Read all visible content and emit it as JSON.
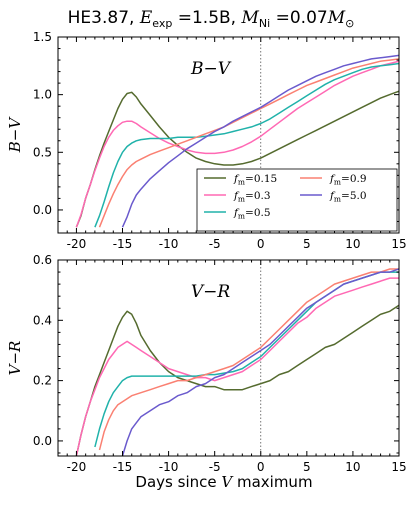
{
  "suptitle": {
    "prefix": "HE3.87, ",
    "e_sym": "E",
    "e_sub": "exp",
    "e_val": " =1.5B, ",
    "m_sym": "M",
    "m_sub": "Ni",
    "m_eq": " =0.07",
    "m_sym2": "M",
    "m_sub2": "⊙"
  },
  "xlabel": {
    "pre": "Days since ",
    "var": "V",
    "post": " maximum"
  },
  "series_style": {
    "f_m=0.15": "#556b2f",
    "f_m=0.3": "#ff69b4",
    "f_m=0.5": "#20b2aa",
    "f_m=0.9": "#fa8072",
    "f_m=5.0": "#6a5acd"
  },
  "legend": {
    "placement": "lower-right of top panel",
    "entries": [
      {
        "sym": "f",
        "sub": "m",
        "val": "=0.15"
      },
      {
        "sym": "f",
        "sub": "m",
        "val": "=0.9"
      },
      {
        "sym": "f",
        "sub": "m",
        "val": "=0.3"
      },
      {
        "sym": "f",
        "sub": "m",
        "val": "=5.0"
      },
      {
        "sym": "f",
        "sub": "m",
        "val": "=0.5"
      }
    ]
  },
  "chart_data": [
    {
      "type": "line",
      "title": "B−V",
      "ylabel": "B−V",
      "xlim": [
        -22,
        15
      ],
      "ylim": [
        -0.2,
        1.5
      ],
      "xticks": [
        -20,
        -15,
        -10,
        -5,
        0,
        5,
        10,
        15
      ],
      "yticks": [
        0.0,
        0.5,
        1.0,
        1.5
      ],
      "ytick_labels": [
        "0.0",
        "0.5",
        "1.0",
        "1.5"
      ],
      "vline_x": 0,
      "series": [
        {
          "name": "f_m=0.15",
          "x": [
            -20.0,
            -19.5,
            -19.0,
            -18.5,
            -18.0,
            -17.5,
            -17.0,
            -16.5,
            -16.0,
            -15.5,
            -15.0,
            -14.5,
            -14.0,
            -13.5,
            -13.0,
            -12.0,
            -11.0,
            -10.0,
            -9.0,
            -8.0,
            -7.0,
            -6.0,
            -5.0,
            -4.0,
            -3.0,
            -2.0,
            -1.0,
            0.0,
            1.0,
            2.0,
            3.0,
            4.0,
            5.0,
            6.0,
            7.0,
            8.0,
            9.0,
            10.0,
            11.0,
            12.0,
            13.0,
            14.0,
            15.0
          ],
          "y": [
            -0.15,
            -0.05,
            0.1,
            0.22,
            0.35,
            0.47,
            0.58,
            0.68,
            0.78,
            0.88,
            0.96,
            1.01,
            1.02,
            0.98,
            0.92,
            0.82,
            0.72,
            0.63,
            0.56,
            0.5,
            0.45,
            0.42,
            0.4,
            0.39,
            0.39,
            0.4,
            0.42,
            0.45,
            0.49,
            0.53,
            0.57,
            0.61,
            0.65,
            0.69,
            0.73,
            0.77,
            0.81,
            0.85,
            0.89,
            0.93,
            0.97,
            1.0,
            1.03
          ]
        },
        {
          "name": "f_m=0.3",
          "x": [
            -20.0,
            -19.5,
            -19.0,
            -18.5,
            -18.0,
            -17.5,
            -17.0,
            -16.5,
            -16.0,
            -15.5,
            -15.0,
            -14.5,
            -14.0,
            -13.5,
            -13.0,
            -12.0,
            -11.0,
            -10.0,
            -9.0,
            -8.0,
            -7.0,
            -6.0,
            -5.0,
            -4.0,
            -3.0,
            -2.0,
            -1.0,
            0.0,
            1.0,
            2.0,
            3.0,
            4.0,
            5.0,
            6.0,
            7.0,
            8.0,
            9.0,
            10.0,
            11.0,
            12.0,
            13.0,
            14.0,
            15.0
          ],
          "y": [
            -0.15,
            -0.04,
            0.1,
            0.22,
            0.34,
            0.45,
            0.55,
            0.63,
            0.69,
            0.73,
            0.76,
            0.77,
            0.77,
            0.75,
            0.72,
            0.67,
            0.62,
            0.58,
            0.55,
            0.52,
            0.5,
            0.49,
            0.49,
            0.5,
            0.52,
            0.55,
            0.59,
            0.64,
            0.7,
            0.76,
            0.82,
            0.88,
            0.93,
            0.98,
            1.03,
            1.08,
            1.12,
            1.16,
            1.19,
            1.22,
            1.25,
            1.27,
            1.29
          ]
        },
        {
          "name": "f_m=0.5",
          "x": [
            -18.0,
            -17.5,
            -17.0,
            -16.5,
            -16.0,
            -15.5,
            -15.0,
            -14.5,
            -14.0,
            -13.5,
            -13.0,
            -12.0,
            -11.0,
            -10.0,
            -9.0,
            -8.0,
            -7.0,
            -6.0,
            -5.0,
            -4.0,
            -3.0,
            -2.0,
            -1.0,
            0.0,
            1.0,
            2.0,
            3.0,
            4.0,
            5.0,
            6.0,
            7.0,
            8.0,
            9.0,
            10.0,
            11.0,
            12.0,
            13.0,
            14.0,
            15.0
          ],
          "y": [
            -0.15,
            -0.05,
            0.07,
            0.2,
            0.32,
            0.42,
            0.5,
            0.55,
            0.58,
            0.6,
            0.61,
            0.62,
            0.62,
            0.62,
            0.63,
            0.63,
            0.63,
            0.64,
            0.65,
            0.66,
            0.68,
            0.7,
            0.72,
            0.75,
            0.79,
            0.84,
            0.89,
            0.94,
            0.99,
            1.04,
            1.09,
            1.13,
            1.16,
            1.19,
            1.22,
            1.24,
            1.25,
            1.26,
            1.27
          ]
        },
        {
          "name": "f_m=0.9",
          "x": [
            -17.5,
            -17.0,
            -16.5,
            -16.0,
            -15.5,
            -15.0,
            -14.5,
            -14.0,
            -13.5,
            -13.0,
            -12.0,
            -11.0,
            -10.0,
            -9.0,
            -8.0,
            -7.0,
            -6.0,
            -5.0,
            -4.0,
            -3.0,
            -2.0,
            -1.0,
            0.0,
            1.0,
            2.0,
            3.0,
            4.0,
            5.0,
            6.0,
            7.0,
            8.0,
            9.0,
            10.0,
            11.0,
            12.0,
            13.0,
            14.0,
            15.0
          ],
          "y": [
            -0.15,
            -0.05,
            0.05,
            0.14,
            0.22,
            0.29,
            0.35,
            0.39,
            0.42,
            0.44,
            0.48,
            0.51,
            0.54,
            0.57,
            0.6,
            0.63,
            0.66,
            0.69,
            0.72,
            0.76,
            0.8,
            0.84,
            0.88,
            0.92,
            0.96,
            1.0,
            1.04,
            1.08,
            1.11,
            1.14,
            1.17,
            1.2,
            1.23,
            1.25,
            1.27,
            1.29,
            1.3,
            1.31
          ]
        },
        {
          "name": "f_m=5.0",
          "x": [
            -15.0,
            -14.5,
            -14.0,
            -13.5,
            -13.0,
            -12.0,
            -11.0,
            -10.0,
            -9.0,
            -8.0,
            -7.0,
            -6.0,
            -5.0,
            -4.0,
            -3.0,
            -2.0,
            -1.0,
            0.0,
            1.0,
            2.0,
            3.0,
            4.0,
            5.0,
            6.0,
            7.0,
            8.0,
            9.0,
            10.0,
            11.0,
            12.0,
            13.0,
            14.0,
            15.0
          ],
          "y": [
            -0.15,
            -0.06,
            0.05,
            0.13,
            0.18,
            0.27,
            0.34,
            0.41,
            0.47,
            0.53,
            0.58,
            0.63,
            0.68,
            0.72,
            0.77,
            0.81,
            0.85,
            0.89,
            0.94,
            0.99,
            1.04,
            1.08,
            1.12,
            1.16,
            1.19,
            1.22,
            1.25,
            1.27,
            1.29,
            1.31,
            1.32,
            1.33,
            1.34
          ]
        }
      ]
    },
    {
      "type": "line",
      "title": "V−R",
      "ylabel": "V−R",
      "xlim": [
        -22,
        15
      ],
      "ylim": [
        -0.05,
        0.6
      ],
      "xticks": [
        -20,
        -15,
        -10,
        -5,
        0,
        5,
        10,
        15
      ],
      "yticks": [
        0.0,
        0.2,
        0.4,
        0.6
      ],
      "ytick_labels": [
        "0.0",
        "0.2",
        "0.4",
        "0.6"
      ],
      "vline_x": 0,
      "series": [
        {
          "name": "f_m=0.15",
          "x": [
            -20.0,
            -19.5,
            -19.0,
            -18.5,
            -18.0,
            -17.5,
            -17.0,
            -16.5,
            -16.0,
            -15.5,
            -15.0,
            -14.5,
            -14.0,
            -13.5,
            -13.0,
            -12.0,
            -11.0,
            -10.0,
            -9.0,
            -8.0,
            -7.0,
            -6.0,
            -5.0,
            -4.0,
            -3.0,
            -2.0,
            -1.0,
            0.0,
            1.0,
            2.0,
            3.0,
            4.0,
            5.0,
            6.0,
            7.0,
            8.0,
            9.0,
            10.0,
            11.0,
            12.0,
            13.0,
            14.0,
            15.0
          ],
          "y": [
            -0.05,
            0.02,
            0.08,
            0.13,
            0.18,
            0.22,
            0.26,
            0.3,
            0.34,
            0.38,
            0.41,
            0.43,
            0.42,
            0.39,
            0.35,
            0.3,
            0.26,
            0.23,
            0.21,
            0.2,
            0.19,
            0.18,
            0.18,
            0.17,
            0.17,
            0.17,
            0.18,
            0.19,
            0.2,
            0.22,
            0.23,
            0.25,
            0.27,
            0.29,
            0.31,
            0.32,
            0.34,
            0.36,
            0.38,
            0.4,
            0.42,
            0.43,
            0.45
          ]
        },
        {
          "name": "f_m=0.3",
          "x": [
            -20.0,
            -19.5,
            -19.0,
            -18.5,
            -18.0,
            -17.5,
            -17.0,
            -16.5,
            -16.0,
            -15.5,
            -15.0,
            -14.5,
            -14.0,
            -13.5,
            -13.0,
            -12.0,
            -11.0,
            -10.0,
            -9.0,
            -8.0,
            -7.0,
            -6.0,
            -5.0,
            -4.0,
            -3.0,
            -2.0,
            -1.0,
            0.0,
            1.0,
            2.0,
            3.0,
            4.0,
            5.0,
            6.0,
            7.0,
            8.0,
            9.0,
            10.0,
            11.0,
            12.0,
            13.0,
            14.0,
            15.0
          ],
          "y": [
            -0.05,
            0.02,
            0.08,
            0.13,
            0.17,
            0.21,
            0.24,
            0.27,
            0.29,
            0.31,
            0.32,
            0.33,
            0.32,
            0.31,
            0.3,
            0.28,
            0.26,
            0.24,
            0.23,
            0.22,
            0.21,
            0.21,
            0.2,
            0.21,
            0.22,
            0.23,
            0.25,
            0.27,
            0.3,
            0.33,
            0.36,
            0.39,
            0.41,
            0.44,
            0.46,
            0.48,
            0.49,
            0.5,
            0.51,
            0.52,
            0.53,
            0.54,
            0.54
          ]
        },
        {
          "name": "f_m=0.5",
          "x": [
            -18.0,
            -17.5,
            -17.0,
            -16.5,
            -16.0,
            -15.5,
            -15.0,
            -14.5,
            -14.0,
            -13.5,
            -13.0,
            -12.0,
            -11.0,
            -10.0,
            -9.0,
            -8.0,
            -7.0,
            -6.0,
            -5.0,
            -4.0,
            -3.0,
            -2.0,
            -1.0,
            0.0,
            1.0,
            2.0,
            3.0,
            4.0,
            5.0,
            6.0,
            7.0,
            8.0,
            9.0,
            10.0,
            11.0,
            12.0,
            13.0,
            14.0,
            15.0
          ],
          "y": [
            -0.02,
            0.04,
            0.09,
            0.13,
            0.16,
            0.18,
            0.2,
            0.21,
            0.215,
            0.215,
            0.215,
            0.215,
            0.215,
            0.215,
            0.215,
            0.215,
            0.215,
            0.22,
            0.22,
            0.225,
            0.23,
            0.24,
            0.26,
            0.28,
            0.31,
            0.34,
            0.37,
            0.4,
            0.43,
            0.46,
            0.48,
            0.5,
            0.52,
            0.53,
            0.54,
            0.55,
            0.56,
            0.56,
            0.56
          ]
        },
        {
          "name": "f_m=0.9",
          "x": [
            -17.5,
            -17.0,
            -16.5,
            -16.0,
            -15.5,
            -15.0,
            -14.5,
            -14.0,
            -13.5,
            -13.0,
            -12.0,
            -11.0,
            -10.0,
            -9.0,
            -8.0,
            -7.0,
            -6.0,
            -5.0,
            -4.0,
            -3.0,
            -2.0,
            -1.0,
            0.0,
            1.0,
            2.0,
            3.0,
            4.0,
            5.0,
            6.0,
            7.0,
            8.0,
            9.0,
            10.0,
            11.0,
            12.0,
            13.0,
            14.0,
            15.0
          ],
          "y": [
            -0.03,
            0.03,
            0.07,
            0.1,
            0.12,
            0.13,
            0.14,
            0.15,
            0.155,
            0.16,
            0.17,
            0.18,
            0.19,
            0.2,
            0.2,
            0.21,
            0.22,
            0.23,
            0.24,
            0.25,
            0.27,
            0.29,
            0.31,
            0.34,
            0.37,
            0.4,
            0.43,
            0.46,
            0.48,
            0.5,
            0.52,
            0.53,
            0.54,
            0.55,
            0.56,
            0.56,
            0.57,
            0.57
          ]
        },
        {
          "name": "f_m=5.0",
          "x": [
            -15.0,
            -14.5,
            -14.0,
            -13.5,
            -13.0,
            -12.0,
            -11.0,
            -10.0,
            -9.0,
            -8.0,
            -7.0,
            -6.0,
            -5.0,
            -4.0,
            -3.0,
            -2.0,
            -1.0,
            0.0,
            1.0,
            2.0,
            3.0,
            4.0,
            5.0,
            6.0,
            7.0,
            8.0,
            9.0,
            10.0,
            11.0,
            12.0,
            13.0,
            14.0,
            15.0
          ],
          "y": [
            -0.05,
            0.0,
            0.04,
            0.06,
            0.08,
            0.1,
            0.12,
            0.13,
            0.15,
            0.16,
            0.18,
            0.19,
            0.21,
            0.22,
            0.24,
            0.26,
            0.28,
            0.3,
            0.32,
            0.35,
            0.38,
            0.41,
            0.44,
            0.46,
            0.48,
            0.5,
            0.52,
            0.53,
            0.54,
            0.55,
            0.56,
            0.56,
            0.57
          ]
        }
      ]
    }
  ]
}
